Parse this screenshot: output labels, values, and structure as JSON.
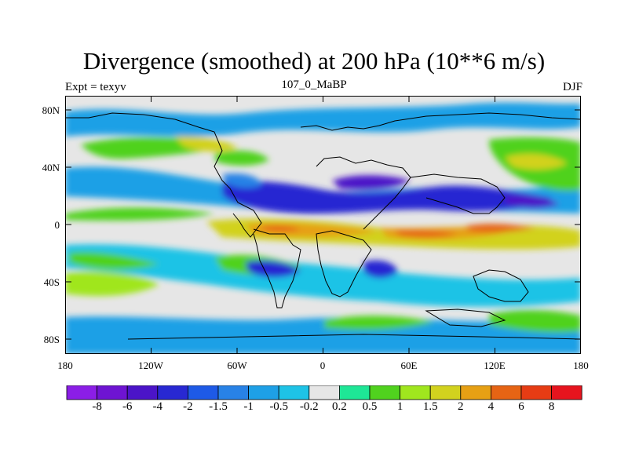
{
  "header": {
    "title": "Divergence (smoothed) at 200 hPa (10**6 m/s)",
    "left": "Expt = texyv",
    "center": "107_0_MaBP",
    "right": "DJF"
  },
  "axes": {
    "y_ticks": [
      "80N",
      "40N",
      "0",
      "40S",
      "80S"
    ],
    "x_ticks": [
      "180",
      "120W",
      "60W",
      "0",
      "60E",
      "120E",
      "180"
    ]
  },
  "colorbar": {
    "labels": [
      "-8",
      "-6",
      "-4",
      "-2",
      "-1.5",
      "-1",
      "-0.5",
      "-0.2",
      "0.2",
      "0.5",
      "1",
      "1.5",
      "2",
      "4",
      "6",
      "8"
    ],
    "colors": [
      "#8b1ee6",
      "#6e14d2",
      "#4b14c8",
      "#2828d2",
      "#1e5ae6",
      "#2882e6",
      "#1ea0e6",
      "#1ec3e6",
      "#e6e6e6",
      "#1ee696",
      "#50d21e",
      "#a0e61e",
      "#d2d21e",
      "#e6a014",
      "#e66414",
      "#e63c14",
      "#e6141e"
    ]
  },
  "map": {
    "land_outline": "#000000",
    "background": "#e6e6e6"
  }
}
